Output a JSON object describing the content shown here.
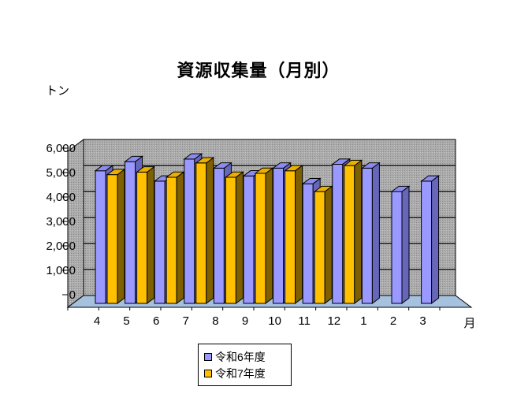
{
  "chart_data": {
    "type": "bar",
    "style": "3d-clustered-column",
    "title": "資源収集量（月別）",
    "ylabel": "トン",
    "xlabel": "月",
    "categories": [
      "4",
      "5",
      "6",
      "7",
      "8",
      "9",
      "10",
      "11",
      "12",
      "1",
      "2",
      "3"
    ],
    "y_ticks": [
      "0",
      "1,000",
      "2,000",
      "3,000",
      "4,000",
      "5,000",
      "6,000"
    ],
    "ylim": [
      0,
      6000
    ],
    "y_tick_step": 1000,
    "grid": true,
    "legend_position": "bottom",
    "series": [
      {
        "name": "令和6年度",
        "color": "#9999FF",
        "side_color": "#6666BB",
        "top_color": "#8C8CEE",
        "values": [
          5100,
          5450,
          4700,
          5550,
          5200,
          4900,
          5200,
          4600,
          5350,
          5200,
          4300,
          4700
        ]
      },
      {
        "name": "令和7年度",
        "color": "#FFC000",
        "side_color": "#7F6000",
        "top_color": "#EAAF00",
        "values": [
          4950,
          5050,
          4850,
          5400,
          4850,
          5000,
          5100,
          4300,
          5300,
          null,
          null,
          null
        ]
      }
    ],
    "wall_color": "#ABABAB",
    "wall_dot_dark": "#8A8A8A",
    "wall_dot_light": "#C6C6C6",
    "floor_color": "#A5C1DD",
    "outline_color": "#000000"
  }
}
